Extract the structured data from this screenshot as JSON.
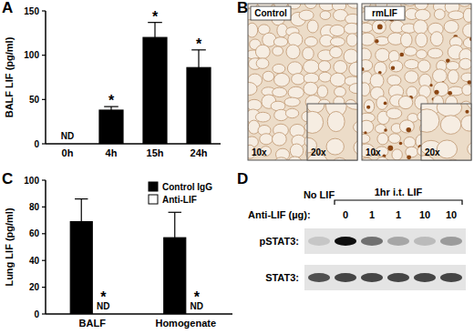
{
  "chart_data": [
    {
      "type": "bar",
      "title": "A",
      "categories": [
        "0h",
        "4h",
        "15h",
        "24h"
      ],
      "values": [
        0,
        38,
        120,
        86
      ],
      "errors": [
        0,
        4,
        17,
        20
      ],
      "annotations": [
        "ND",
        null,
        null,
        null
      ],
      "significance": [
        null,
        "*",
        "*",
        "*"
      ],
      "color": "#000000",
      "y_label": "BALF LIF (pg/ml)",
      "ylim": [
        0,
        150
      ],
      "yticks": [
        0,
        50,
        100,
        150
      ]
    },
    {
      "type": "bar",
      "title": "C",
      "categories": [
        "BALF",
        "Homogenate"
      ],
      "series": [
        {
          "name": "Control IgG",
          "color": "#000000",
          "values": [
            69,
            57
          ],
          "errors": [
            17,
            19
          ]
        },
        {
          "name": "Anti-LIF",
          "color": "#ffffff",
          "values": [
            0,
            0
          ],
          "annotations": [
            "ND",
            "ND"
          ],
          "significance": [
            "*",
            "*"
          ]
        }
      ],
      "y_label": "Lung LIF (pg/ml)",
      "ylim": [
        0,
        100
      ],
      "yticks": [
        0,
        20,
        40,
        60,
        80,
        100
      ],
      "legend": "upper right"
    }
  ],
  "micrographs": {
    "title": "B",
    "images": [
      {
        "label": "Control",
        "magnifications": [
          "10x",
          "20x"
        ]
      },
      {
        "label": "rmLIF",
        "magnifications": [
          "10x",
          "20x"
        ]
      }
    ]
  },
  "blot": {
    "title": "D",
    "treatment_label": "Anti-LIF (µg):",
    "group_label": "1hr i.t. LIF",
    "lanes": [
      "No LIF",
      "0",
      "1",
      "1",
      "10",
      "10"
    ],
    "rows": [
      {
        "label": "pSTAT3:",
        "intensity": [
          0.15,
          1,
          0.55,
          0.3,
          0.2,
          0.35
        ]
      },
      {
        "label": "STAT3:",
        "intensity": [
          0.7,
          0.75,
          0.75,
          0.75,
          0.75,
          0.75
        ]
      }
    ]
  }
}
